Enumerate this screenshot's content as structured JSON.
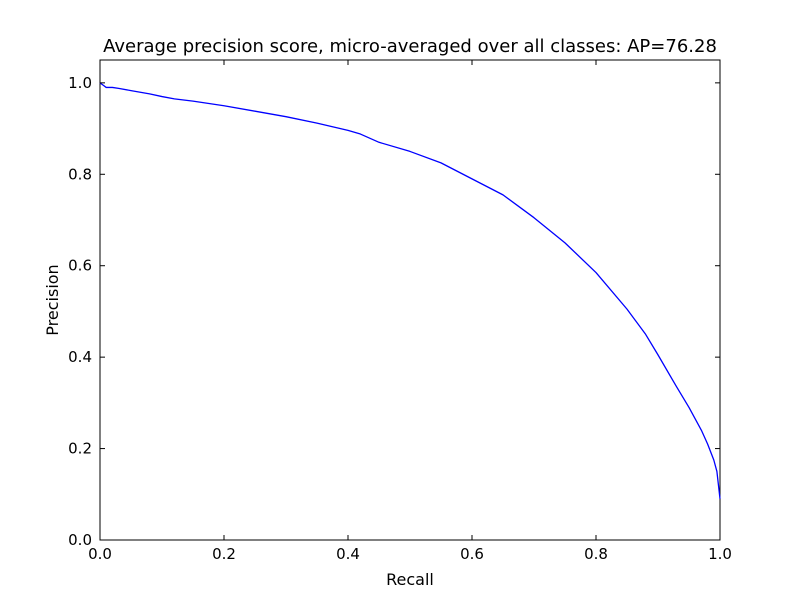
{
  "chart_data": {
    "type": "line",
    "title": "Average precision score, micro-averaged over all classes: AP=76.28",
    "xlabel": "Recall",
    "ylabel": "Precision",
    "xlim": [
      0.0,
      1.0
    ],
    "ylim": [
      0.0,
      1.05
    ],
    "xticks": [
      "0.0",
      "0.2",
      "0.4",
      "0.6",
      "0.8",
      "1.0"
    ],
    "yticks": [
      "0.0",
      "0.2",
      "0.4",
      "0.6",
      "0.8",
      "1.0"
    ],
    "grid": false,
    "line_color": "#0000ff",
    "series": [
      {
        "x": [
          0.0,
          0.005,
          0.01,
          0.02,
          0.03,
          0.05,
          0.08,
          0.1,
          0.12,
          0.15,
          0.2,
          0.25,
          0.3,
          0.35,
          0.4,
          0.42,
          0.45,
          0.5,
          0.55,
          0.6,
          0.65,
          0.68,
          0.7,
          0.75,
          0.8,
          0.85,
          0.88,
          0.9,
          0.93,
          0.95,
          0.97,
          0.98,
          0.99,
          0.995,
          1.0
        ],
        "y": [
          1.0,
          0.995,
          0.99,
          0.99,
          0.988,
          0.983,
          0.976,
          0.97,
          0.965,
          0.96,
          0.95,
          0.938,
          0.926,
          0.912,
          0.896,
          0.888,
          0.87,
          0.85,
          0.825,
          0.79,
          0.755,
          0.725,
          0.705,
          0.65,
          0.585,
          0.505,
          0.45,
          0.405,
          0.335,
          0.29,
          0.24,
          0.21,
          0.175,
          0.15,
          0.09
        ]
      }
    ]
  }
}
